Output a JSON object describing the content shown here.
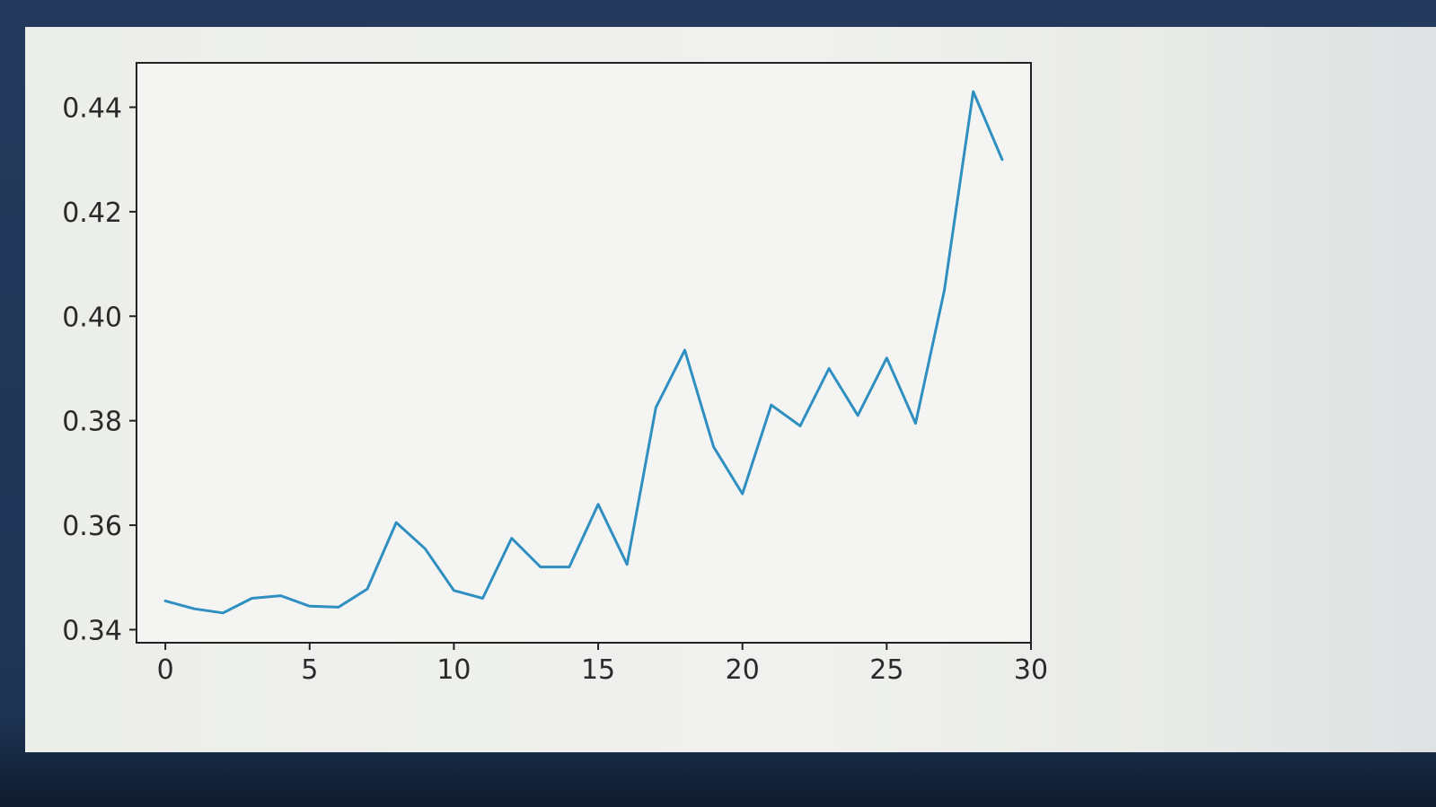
{
  "chart_data": {
    "type": "line",
    "title": "",
    "xlabel": "",
    "ylabel": "",
    "x": [
      0,
      1,
      2,
      3,
      4,
      5,
      6,
      7,
      8,
      9,
      10,
      11,
      12,
      13,
      14,
      15,
      16,
      17,
      18,
      19,
      20,
      21,
      22,
      23,
      24,
      25,
      26,
      27,
      28,
      29
    ],
    "series": [
      {
        "color": "#2f8fc0",
        "values": [
          0.3455,
          0.344,
          0.3432,
          0.346,
          0.3465,
          0.3445,
          0.3443,
          0.3478,
          0.3605,
          0.3555,
          0.3475,
          0.346,
          0.3575,
          0.352,
          0.352,
          0.364,
          0.3525,
          0.3825,
          0.3935,
          0.375,
          0.366,
          0.383,
          0.379,
          0.39,
          0.381,
          0.392,
          0.3795,
          0.405,
          0.443,
          0.43
        ]
      }
    ],
    "xlim": [
      -1,
      30
    ],
    "ylim": [
      0.3375,
      0.4485
    ],
    "xticks": [
      0,
      5,
      10,
      15,
      20,
      25,
      30
    ],
    "yticks": [
      0.34,
      0.36,
      0.38,
      0.4,
      0.42,
      0.44
    ],
    "xtick_labels": [
      "0",
      "5",
      "10",
      "15",
      "20",
      "25",
      "30"
    ],
    "ytick_labels": [
      "0.34",
      "0.36",
      "0.38",
      "0.40",
      "0.42",
      "0.44"
    ],
    "grid": false,
    "legend": "none"
  }
}
